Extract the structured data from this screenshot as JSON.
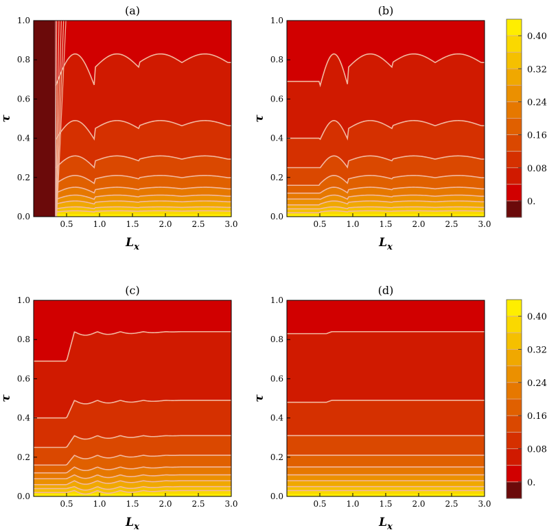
{
  "chart_data": [
    {
      "type": "heatmap",
      "panel_label": "(a)",
      "xlabel": "L",
      "xlabel_sub": "x",
      "ylabel": "τ",
      "xlim": [
        0,
        3
      ],
      "ylim": [
        0,
        1
      ],
      "x_ticks": [
        "0.5",
        "1.0",
        "1.5",
        "2.0",
        "2.5",
        "3.0"
      ],
      "y_ticks": [
        "0.0",
        "0.2",
        "0.4",
        "0.6",
        "0.8",
        "1.0"
      ],
      "contour_levels_tau": [
        0.83,
        0.49,
        0.31,
        0.21,
        0.15,
        0.11,
        0.08,
        0.05,
        0.03
      ],
      "contour_shape": "oscillating",
      "transition_x": 0.33,
      "zero_region_x": [
        0,
        0.33
      ]
    },
    {
      "type": "heatmap",
      "panel_label": "(b)",
      "xlabel": "L",
      "xlabel_sub": "x",
      "ylabel": "τ",
      "xlim": [
        0,
        3
      ],
      "ylim": [
        0,
        1
      ],
      "x_ticks": [
        "0.5",
        "1.0",
        "1.5",
        "2.0",
        "2.5",
        "3.0"
      ],
      "y_ticks": [
        "0.0",
        "0.2",
        "0.4",
        "0.6",
        "0.8",
        "1.0"
      ],
      "contour_levels_tau": [
        0.83,
        0.49,
        0.31,
        0.21,
        0.15,
        0.11,
        0.08,
        0.05,
        0.03
      ],
      "contour_flat_tau": [
        0.69,
        0.4,
        0.25,
        0.16,
        0.12,
        0.09,
        0.06,
        0.04,
        0.02
      ],
      "contour_shape": "oscillating",
      "transition_x": 0.5
    },
    {
      "type": "heatmap",
      "panel_label": "(c)",
      "xlabel": "L",
      "xlabel_sub": "x",
      "ylabel": "τ",
      "xlim": [
        0,
        3
      ],
      "ylim": [
        0,
        1
      ],
      "x_ticks": [
        "0.5",
        "1.0",
        "1.5",
        "2.0",
        "2.5",
        "3.0"
      ],
      "y_ticks": [
        "0.0",
        "0.2",
        "0.4",
        "0.6",
        "0.8",
        "1.0"
      ],
      "contour_levels_tau": [
        0.84,
        0.49,
        0.31,
        0.21,
        0.15,
        0.11,
        0.08,
        0.05,
        0.03
      ],
      "contour_flat_tau": [
        0.69,
        0.4,
        0.25,
        0.16,
        0.12,
        0.09,
        0.06,
        0.04,
        0.02
      ],
      "contour_shape": "step",
      "transition_x": 0.5
    },
    {
      "type": "heatmap",
      "panel_label": "(d)",
      "xlabel": "L",
      "xlabel_sub": "x",
      "ylabel": "τ",
      "xlim": [
        0,
        3
      ],
      "ylim": [
        0,
        1
      ],
      "x_ticks": [
        "0.5",
        "1.0",
        "1.5",
        "2.0",
        "2.5",
        "3.0"
      ],
      "y_ticks": [
        "0.0",
        "0.2",
        "0.4",
        "0.6",
        "0.8",
        "1.0"
      ],
      "contour_levels_tau": [
        0.84,
        0.49,
        0.31,
        0.21,
        0.15,
        0.11,
        0.08,
        0.05,
        0.03
      ],
      "contour_flat_tau": [
        0.83,
        0.48,
        0.31,
        0.21,
        0.15,
        0.11,
        0.08,
        0.05,
        0.03
      ],
      "contour_shape": "nearly-flat",
      "transition_x": 0.6
    }
  ],
  "colorbar": {
    "tick_labels": [
      "0.40",
      "0.32",
      "0.24",
      "0.16",
      "0.08",
      "0."
    ],
    "tick_values": [
      0.4,
      0.32,
      0.24,
      0.16,
      0.08,
      0.0
    ],
    "bands": [
      {
        "from": -0.04,
        "to": 0.0,
        "color": "#6b0a0a"
      },
      {
        "from": 0.0,
        "to": 0.04,
        "color": "#d10000"
      },
      {
        "from": 0.04,
        "to": 0.08,
        "color": "#d01a00"
      },
      {
        "from": 0.08,
        "to": 0.12,
        "color": "#d53000"
      },
      {
        "from": 0.12,
        "to": 0.16,
        "color": "#da4800"
      },
      {
        "from": 0.16,
        "to": 0.2,
        "color": "#e06000"
      },
      {
        "from": 0.2,
        "to": 0.24,
        "color": "#e67800"
      },
      {
        "from": 0.24,
        "to": 0.28,
        "color": "#eb9000"
      },
      {
        "from": 0.28,
        "to": 0.32,
        "color": "#f0a800"
      },
      {
        "from": 0.32,
        "to": 0.36,
        "color": "#f5c000"
      },
      {
        "from": 0.36,
        "to": 0.4,
        "color": "#fad800"
      },
      {
        "from": 0.4,
        "to": 0.44,
        "color": "#ffee00"
      }
    ]
  },
  "colors": {
    "contour_line": "#f2b8a0",
    "zero_region": "#6b0a0a",
    "axis": "#000000"
  }
}
